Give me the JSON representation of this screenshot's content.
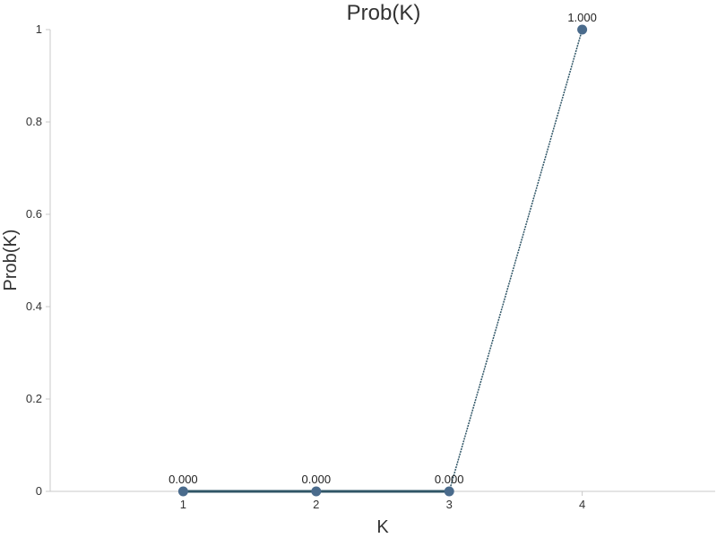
{
  "chart_data": {
    "type": "line",
    "title": "Prob(K)",
    "xlabel": "K",
    "ylabel": "Prob(K)",
    "x": [
      1,
      2,
      3,
      4
    ],
    "xlim": [
      0,
      5
    ],
    "ylim": [
      0,
      1
    ],
    "yticks": [
      0,
      0.2,
      0.4,
      0.6,
      0.8,
      1
    ],
    "ytick_labels": [
      "0",
      "0.2",
      "0.4",
      "0.6",
      "0.8",
      "1"
    ],
    "xtick_labels": [
      "1",
      "2",
      "3",
      "4"
    ],
    "series": [
      {
        "values": [
          0,
          0,
          0,
          1
        ],
        "labels": [
          "0.000",
          "0.000",
          "0.000",
          "1.000"
        ],
        "color": "#4a6b8c",
        "line_color": "#2f5566"
      }
    ],
    "grid": false,
    "legend": "none"
  }
}
